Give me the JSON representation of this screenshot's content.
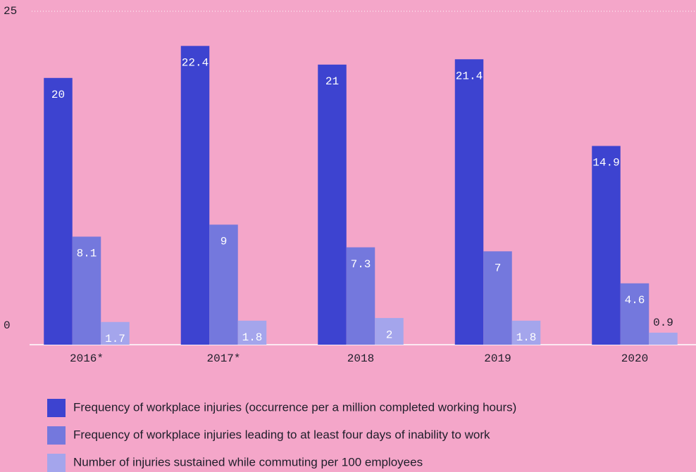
{
  "chart_data": {
    "type": "bar",
    "categories": [
      "2016*",
      "2017*",
      "2018",
      "2019",
      "2020"
    ],
    "series": [
      {
        "name": "Frequency of workplace injuries (occurrence per a million completed working hours)",
        "color": "#3d43d0",
        "values": [
          20,
          22.4,
          21,
          21.4,
          14.9
        ]
      },
      {
        "name": "Frequency of workplace injuries leading to at least four days of inability to work",
        "color": "#7478dd",
        "values": [
          8.1,
          9,
          7.3,
          7,
          4.6
        ]
      },
      {
        "name": "Number of injuries sustained while commuting per 100 employees",
        "color": "#a4a5ec",
        "values": [
          1.7,
          1.8,
          2,
          1.8,
          0.9
        ]
      }
    ],
    "ylim": [
      0,
      25
    ],
    "yticks": [
      0,
      25
    ],
    "grid": true,
    "legend": "bottom"
  }
}
